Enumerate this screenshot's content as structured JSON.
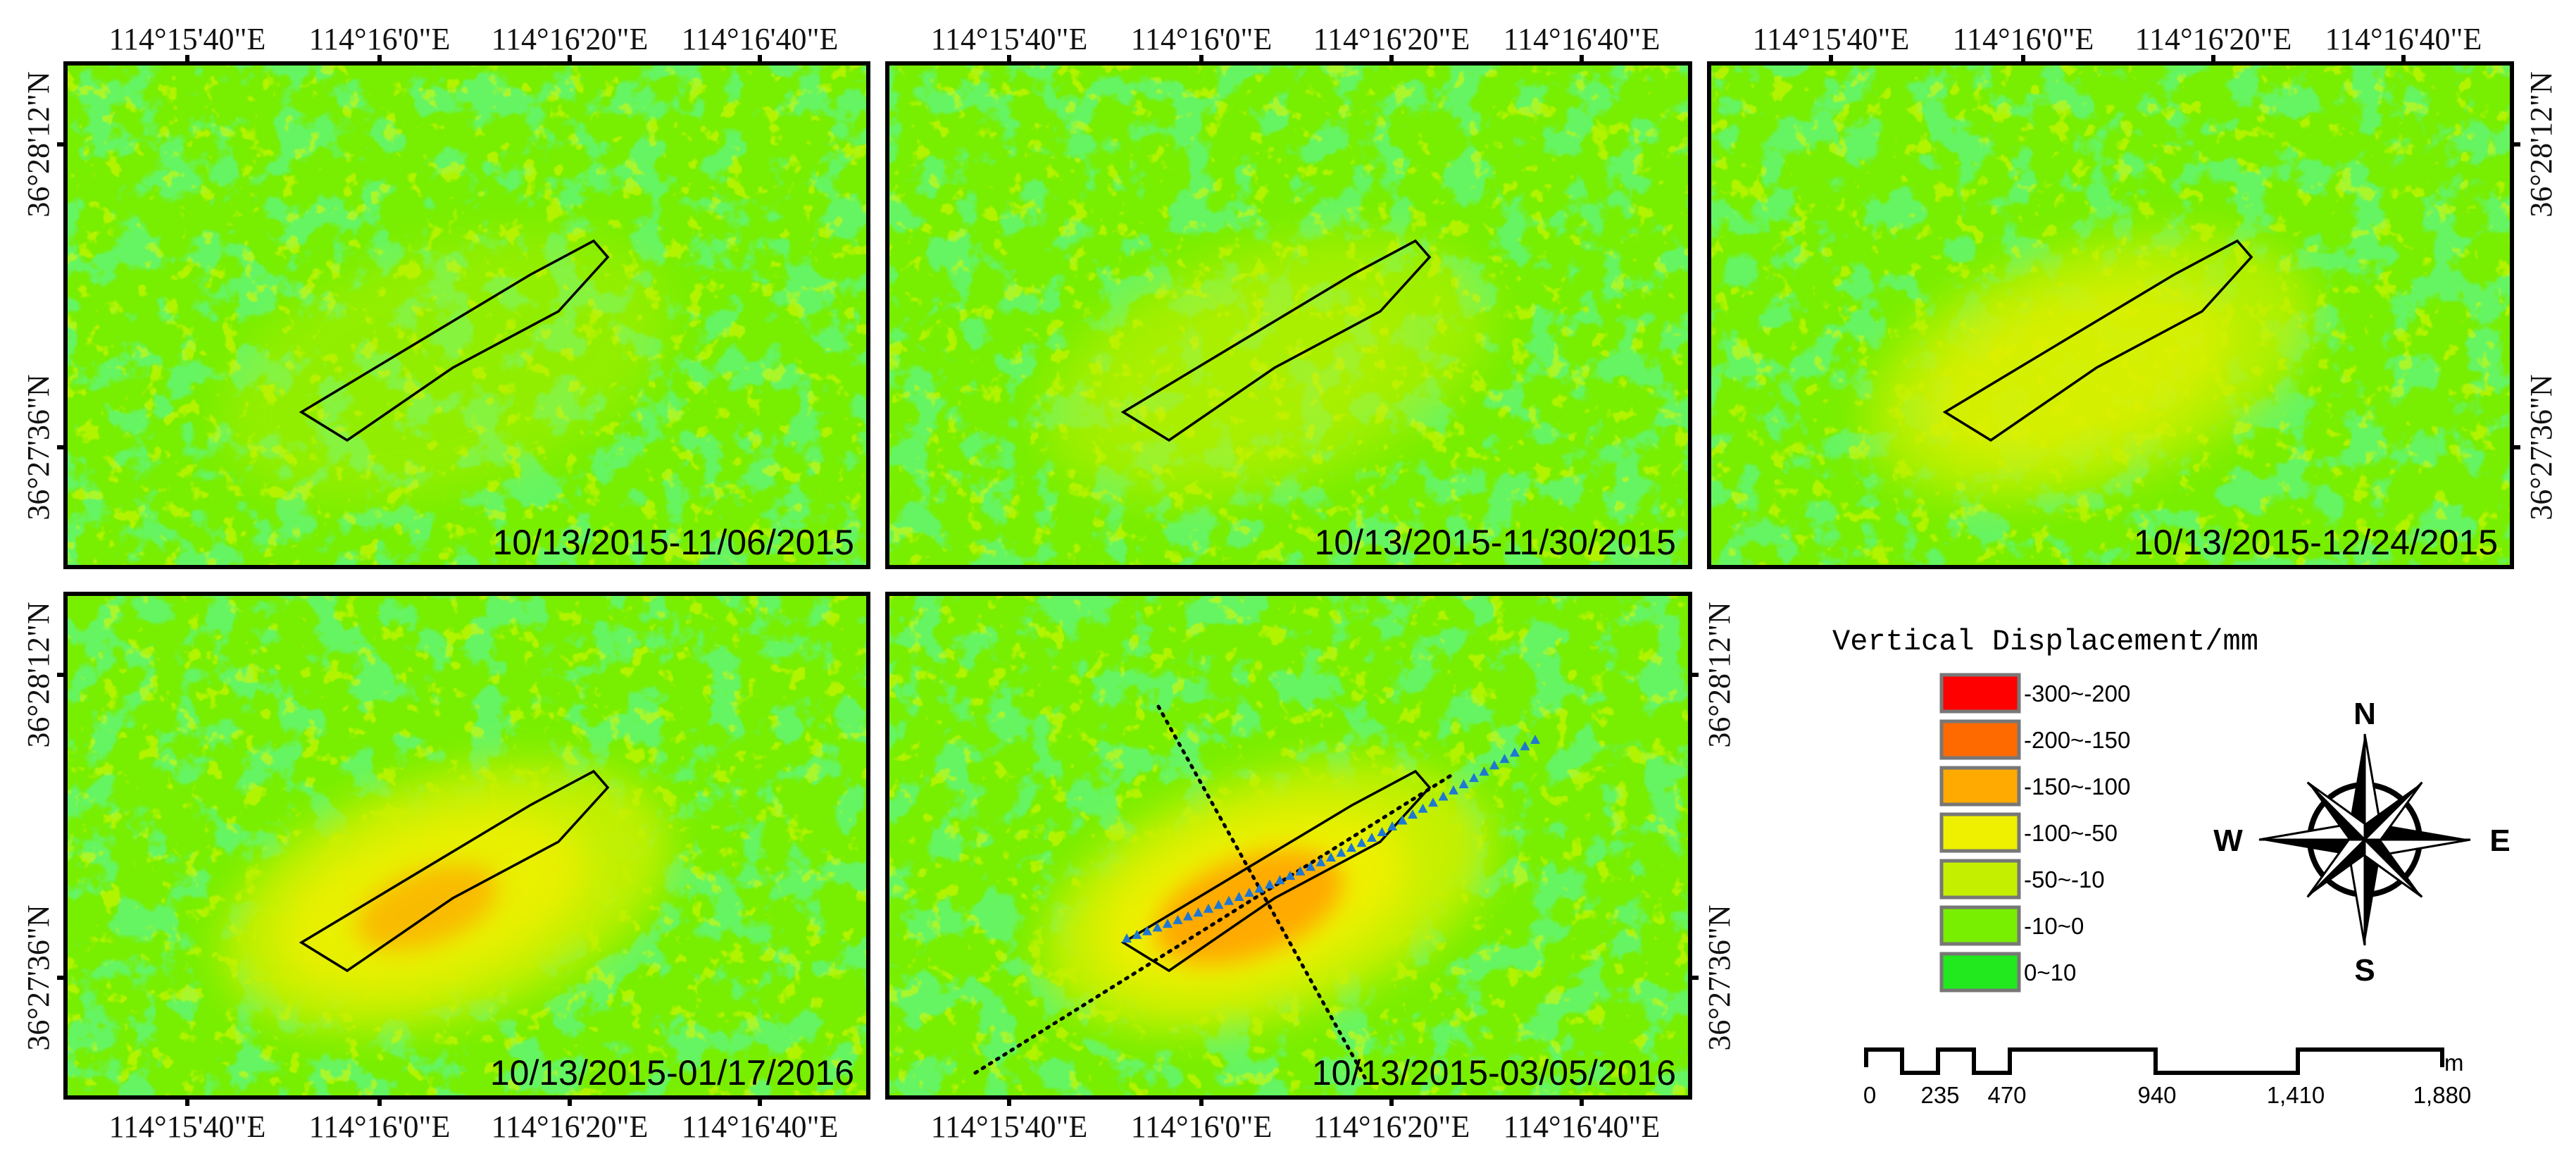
{
  "panels": [
    {
      "id": "p1",
      "date_range": "10/13/2015-11/06/2015",
      "top_lon_labels": true,
      "bottom_lon_labels": false,
      "left_lat_labels": true,
      "right_lat_labels": false,
      "profile_lines": false
    },
    {
      "id": "p2",
      "date_range": "10/13/2015-11/30/2015",
      "top_lon_labels": true,
      "bottom_lon_labels": false,
      "left_lat_labels": false,
      "right_lat_labels": false,
      "profile_lines": false
    },
    {
      "id": "p3",
      "date_range": "10/13/2015-12/24/2015",
      "top_lon_labels": true,
      "bottom_lon_labels": false,
      "left_lat_labels": false,
      "right_lat_labels": true,
      "profile_lines": false
    },
    {
      "id": "p4",
      "date_range": "10/13/2015-01/17/2016",
      "top_lon_labels": false,
      "bottom_lon_labels": true,
      "left_lat_labels": true,
      "right_lat_labels": false,
      "profile_lines": false
    },
    {
      "id": "p5",
      "date_range": "10/13/2015-03/05/2016",
      "top_lon_labels": false,
      "bottom_lon_labels": true,
      "left_lat_labels": false,
      "right_lat_labels": true,
      "profile_lines": true
    }
  ],
  "lon_ticks": [
    "114°15'40\"E",
    "114°16'0\"E",
    "114°16'20\"E",
    "114°16'40\"E"
  ],
  "lat_ticks": [
    "36°28'12\"N",
    "36°27'36\"N"
  ],
  "legend": {
    "title": "Vertical Displacement/mm",
    "classes": [
      {
        "label": "-300~-200",
        "color": "#ff0000"
      },
      {
        "label": "-200~-150",
        "color": "#ff6a00"
      },
      {
        "label": "-150~-100",
        "color": "#ffaa00"
      },
      {
        "label": "-100~-50",
        "color": "#eef000"
      },
      {
        "label": "-50~-10",
        "color": "#c4f000"
      },
      {
        "label": "-10~0",
        "color": "#78ee00"
      },
      {
        "label": "0~10",
        "color": "#22e81e"
      }
    ]
  },
  "compass": {
    "n": "N",
    "s": "S",
    "e": "E",
    "w": "W"
  },
  "scalebar": {
    "unit": "m",
    "ticks": [
      "0",
      "235",
      "470",
      "940",
      "1,410",
      "1,880"
    ]
  },
  "colors": {
    "base_green": "#78ee00",
    "bright_green": "#22e81e",
    "subsidence_yellow_green": "#c4f000",
    "subsidence_yellow": "#eef000",
    "subsidence_orange": "#ffaa00",
    "outline": "#000000",
    "monitoring_points": "#1e78d2"
  }
}
